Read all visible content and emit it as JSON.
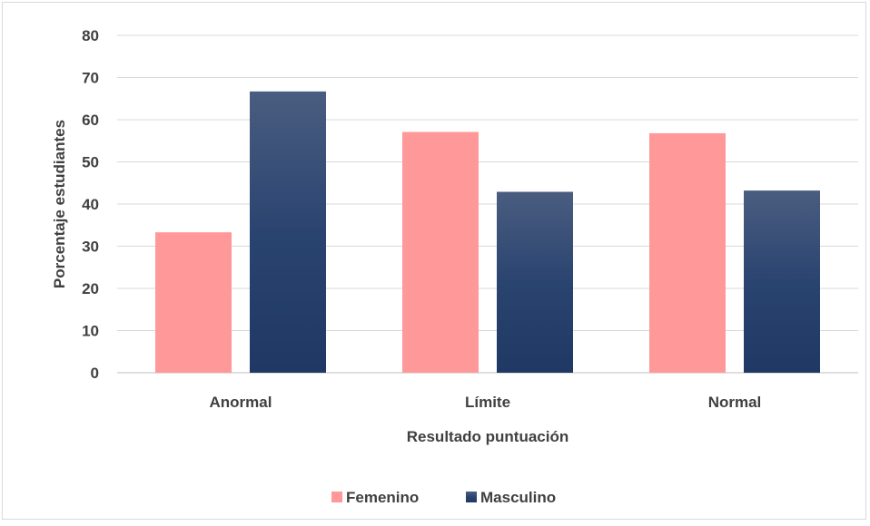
{
  "chart_data": {
    "type": "bar",
    "title": "",
    "xlabel": "Resultado puntuación",
    "ylabel": "Porcentaje estudiantes",
    "categories": [
      "Anormal",
      "Límite",
      "Normal"
    ],
    "series": [
      {
        "name": "Femenino",
        "values": [
          33.3,
          57.1,
          56.8
        ],
        "color": "#ff9999"
      },
      {
        "name": "Masculino",
        "values": [
          66.7,
          42.9,
          43.2
        ],
        "color": "#1f3864",
        "color_top": "#4a5d80"
      }
    ],
    "ylim": [
      0,
      80
    ],
    "yticks": [
      "0",
      "10",
      "20",
      "30",
      "40",
      "50",
      "60",
      "70",
      "80"
    ],
    "grid": true,
    "legend": "bottom"
  }
}
